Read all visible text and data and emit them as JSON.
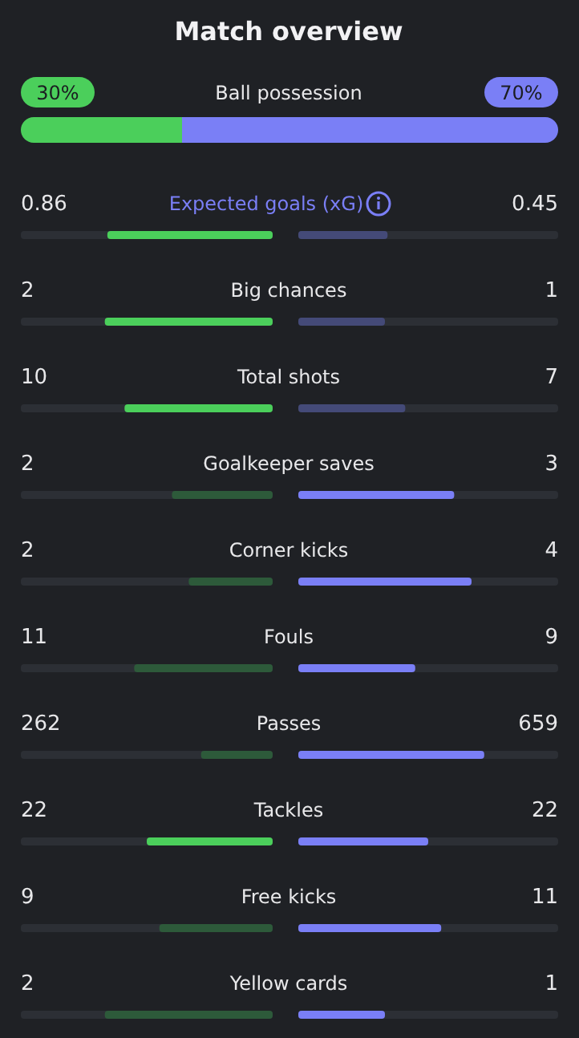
{
  "chart_data": {
    "type": "other",
    "title": "Match overview",
    "categories": [
      "Ball possession",
      "Expected goals (xG)",
      "Big chances",
      "Total shots",
      "Goalkeeper saves",
      "Corner kicks",
      "Fouls",
      "Passes",
      "Tackles",
      "Free kicks",
      "Yellow cards"
    ],
    "series": [
      {
        "values": [
          30,
          0.86,
          2,
          10,
          2,
          2,
          11,
          262,
          22,
          9,
          2
        ],
        "value_labels": [
          "30%",
          "0.86",
          "2",
          "10",
          "2",
          "2",
          "11",
          "262",
          "22",
          "9",
          "2"
        ],
        "colors": [
          "#4bcf5b",
          "#4bcf5b",
          "#4bcf5b",
          "#4bcf5b",
          "#2d5a3a",
          "#2d5a3a",
          "#2d5a3a",
          "#2d5a3a",
          "#4bcf5b",
          "#2d5a3a",
          "#2d5a3a"
        ]
      },
      {
        "values": [
          70,
          0.45,
          1,
          7,
          3,
          4,
          9,
          659,
          22,
          11,
          1
        ],
        "value_labels": [
          "70%",
          "0.45",
          "1",
          "7",
          "3",
          "4",
          "9",
          "659",
          "22",
          "11",
          "1"
        ],
        "colors": [
          "#7a7ff6",
          "#444a78",
          "#444a78",
          "#444a78",
          "#7a7ff6",
          "#7a7ff6",
          "#7a7ff6",
          "#7a7ff6",
          "#7a7ff6",
          "#7a7ff6",
          "#7a7ff6"
        ]
      }
    ]
  }
}
